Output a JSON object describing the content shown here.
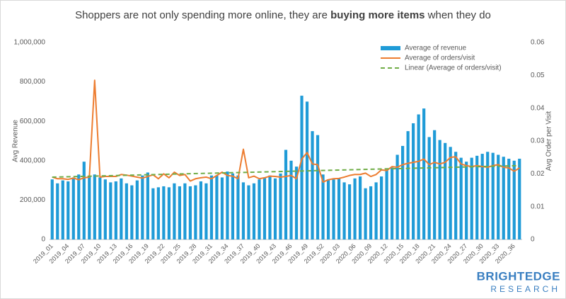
{
  "chart_data": {
    "type": "bar-line",
    "title": [
      "Shoppers are not only spending more online, they are ",
      "buying more items",
      " when they do"
    ],
    "ylabel": "Avg Revenue",
    "y2label": "Avg Order per Visit",
    "categories": [
      "2019_01",
      null,
      null,
      "2019_04",
      null,
      null,
      "2019_07",
      null,
      null,
      "2019_10",
      null,
      null,
      "2019_13",
      null,
      null,
      "2019_16",
      null,
      null,
      "2019_19",
      null,
      null,
      "2019_22",
      null,
      null,
      "2019_25",
      null,
      null,
      "2019_28",
      null,
      null,
      "2019_31",
      null,
      null,
      "2019_34",
      null,
      null,
      "2019_37",
      null,
      null,
      "2019_40",
      null,
      null,
      "2019_43",
      null,
      null,
      "2019_46",
      null,
      null,
      "2019_49",
      null,
      null,
      "2019_52",
      null,
      null,
      "2020_03",
      null,
      null,
      "2020_06",
      null,
      null,
      "2020_09",
      null,
      null,
      "2020_12",
      null,
      null,
      "2020_15",
      null,
      null,
      "2020_18",
      null,
      null,
      "2020_21",
      null,
      null,
      "2020_24",
      null,
      null,
      "2020_27",
      null,
      null,
      "2020_30",
      null,
      null,
      "2020_33",
      null,
      null,
      "2020_36",
      null
    ],
    "series": [
      {
        "name": "Average of revenue",
        "color": "#1f9bd7",
        "kind": "bar",
        "values": [
          305000,
          285000,
          300000,
          295000,
          315000,
          330000,
          395000,
          320000,
          330000,
          315000,
          305000,
          290000,
          295000,
          310000,
          285000,
          275000,
          300000,
          325000,
          340000,
          260000,
          265000,
          270000,
          265000,
          285000,
          270000,
          285000,
          270000,
          275000,
          295000,
          285000,
          325000,
          325000,
          315000,
          345000,
          335000,
          325000,
          290000,
          275000,
          285000,
          305000,
          315000,
          325000,
          310000,
          335000,
          455000,
          400000,
          370000,
          730000,
          700000,
          550000,
          530000,
          330000,
          305000,
          305000,
          310000,
          290000,
          280000,
          310000,
          320000,
          260000,
          270000,
          290000,
          320000,
          355000,
          365000,
          430000,
          475000,
          550000,
          590000,
          635000,
          665000,
          520000,
          555000,
          505000,
          490000,
          470000,
          445000,
          415000,
          395000,
          415000,
          425000,
          435000,
          445000,
          440000,
          430000,
          420000,
          410000,
          400000,
          410000
        ]
      },
      {
        "name": "Average of orders/visit",
        "color": "#ed7d31",
        "kind": "line",
        "axis": "y2",
        "values": [
          0.019,
          0.0185,
          0.0185,
          0.0183,
          0.0187,
          0.0182,
          0.0188,
          0.019,
          0.0485,
          0.019,
          0.0192,
          0.0192,
          0.0192,
          0.0198,
          0.0196,
          0.0193,
          0.019,
          0.0187,
          0.0192,
          0.0197,
          0.0185,
          0.02,
          0.0188,
          0.0205,
          0.0195,
          0.0198,
          0.0178,
          0.0185,
          0.0188,
          0.019,
          0.0185,
          0.0195,
          0.0205,
          0.0195,
          0.0193,
          0.0185,
          0.0275,
          0.0188,
          0.0193,
          0.0185,
          0.0188,
          0.0193,
          0.0192,
          0.019,
          0.0192,
          0.0195,
          0.0185,
          0.0245,
          0.0265,
          0.023,
          0.0228,
          0.0175,
          0.0182,
          0.0185,
          0.0186,
          0.019,
          0.0195,
          0.0198,
          0.0198,
          0.0202,
          0.0192,
          0.0198,
          0.0212,
          0.021,
          0.0222,
          0.022,
          0.0228,
          0.0232,
          0.0235,
          0.0238,
          0.0245,
          0.0228,
          0.0235,
          0.023,
          0.0235,
          0.025,
          0.0252,
          0.023,
          0.0225,
          0.0222,
          0.0225,
          0.0222,
          0.022,
          0.0225,
          0.0228,
          0.022,
          0.0218,
          0.0208,
          0.0218
        ]
      }
    ],
    "trendline": {
      "name": "Linear (Average of orders/visit)",
      "color": "#70ad47",
      "axis": "y2",
      "start": 0.019,
      "end": 0.0225
    },
    "ylim": [
      0,
      1000000
    ],
    "yticks": [
      0,
      {
        "value": 200000,
        "label": "200,000"
      },
      {
        "value": 400000,
        "label": "400,000"
      },
      {
        "value": 600000,
        "label": "600,000"
      },
      {
        "value": 800000,
        "label": "800,000"
      },
      {
        "value": 1000000,
        "label": "1,000,000"
      }
    ],
    "y2lim": [
      0,
      0.06
    ],
    "y2ticks": [
      0,
      0.01,
      0.02,
      0.03,
      0.04,
      0.05,
      0.06
    ],
    "grid": false,
    "legend": "top-right"
  },
  "brand": [
    "BRIGHTEDGE",
    "RESEARCH"
  ]
}
